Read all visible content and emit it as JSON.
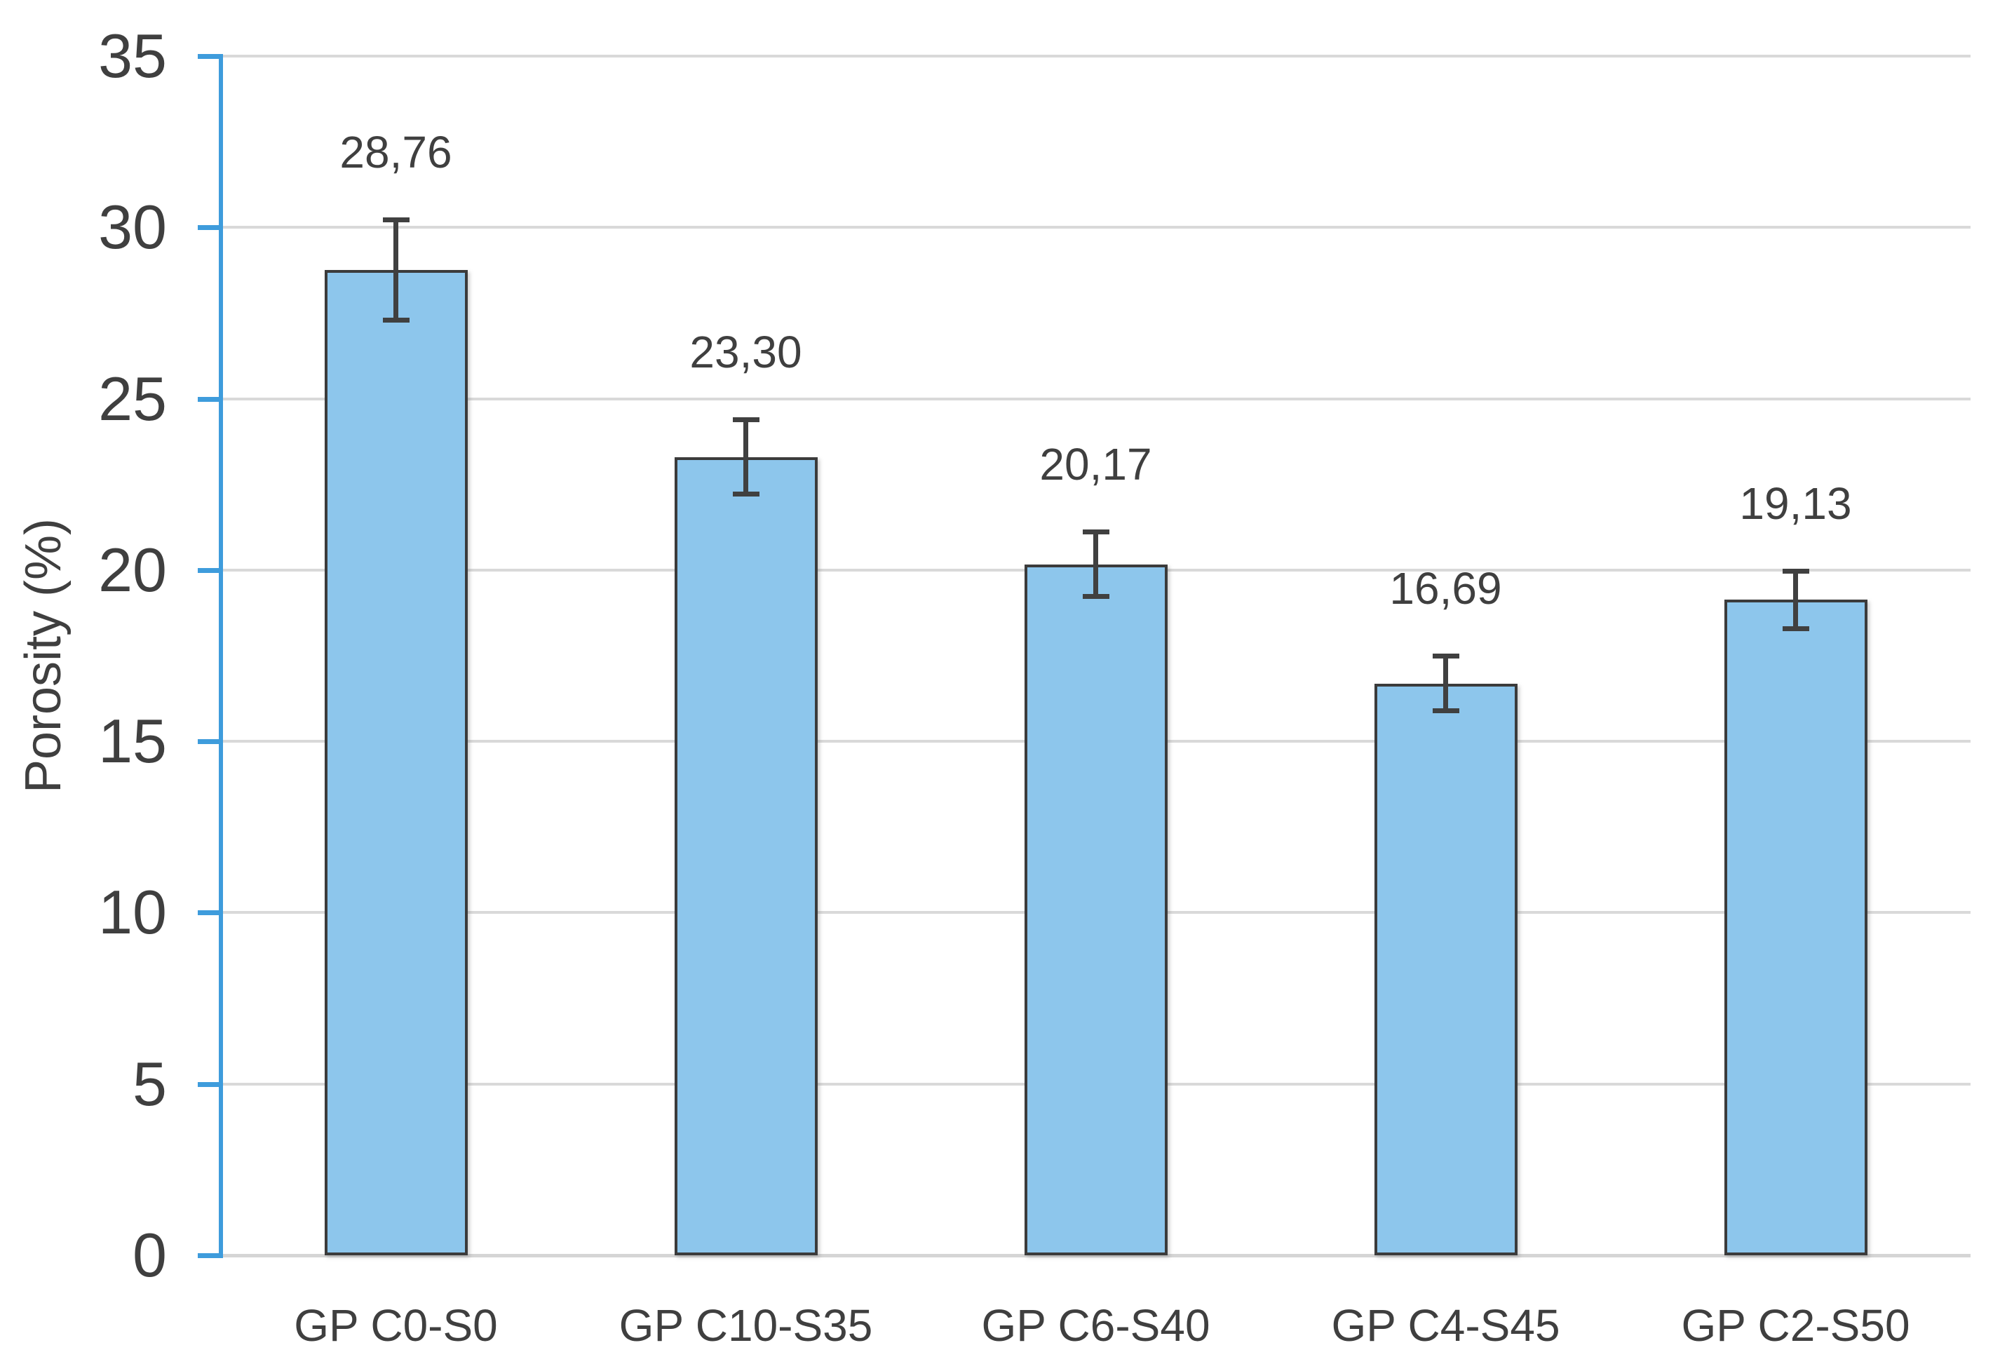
{
  "chart_data": {
    "type": "bar",
    "title": "",
    "xlabel": "",
    "ylabel": "Porosity (%)",
    "ylim": [
      0,
      35
    ],
    "ytick_step": 5,
    "yticks": [
      0,
      5,
      10,
      15,
      20,
      25,
      30,
      35
    ],
    "categories": [
      "GP C0-S0",
      "GP C10-S35",
      "GP C6-S40",
      "GP C4-S45",
      "GP C2-S50"
    ],
    "values": [
      28.76,
      23.3,
      20.17,
      16.69,
      19.13
    ],
    "value_labels": [
      "28,76",
      "23,30",
      "20,17",
      "16,69",
      "19,13"
    ],
    "error_bars": [
      1.48,
      1.1,
      0.95,
      0.8,
      0.85
    ],
    "grid": true,
    "legend": false,
    "decimal_separator": ",",
    "colors": {
      "bar_fill": "#8DC6EC",
      "bar_border": "#3B3B3B",
      "axis_line": "#3E9CDC",
      "gridline": "#D9D9D9",
      "baseline": "#D5D5D5",
      "error_bar": "#404040",
      "text": "#3F3F3F",
      "background": "#FFFFFF"
    }
  }
}
